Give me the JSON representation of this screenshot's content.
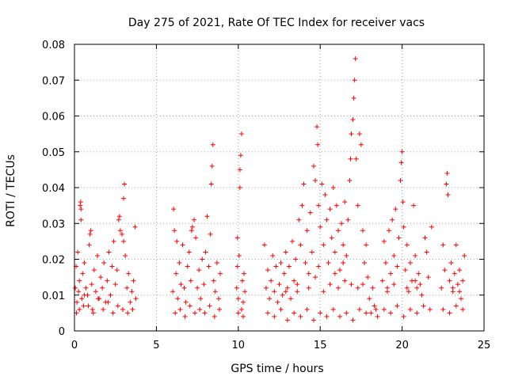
{
  "chart_data": {
    "type": "scatter",
    "title": "Day 275 of 2021, Rate Of TEC Index for receiver vacs",
    "xlabel": "GPS time / hours",
    "ylabel": "ROTI / TECUs",
    "xlim": [
      0,
      25
    ],
    "ylim": [
      0,
      0.08
    ],
    "xticks": [
      0,
      5,
      10,
      15,
      20,
      25
    ],
    "yticks": [
      0,
      0.01,
      0.02,
      0.03,
      0.04,
      0.05,
      0.06,
      0.07,
      0.08
    ],
    "xtick_labels": [
      "0",
      "5",
      "10",
      "15",
      "20",
      "25"
    ],
    "ytick_labels": [
      "0",
      "0.01",
      "0.02",
      "0.03",
      "0.04",
      "0.05",
      "0.06",
      "0.07",
      "0.08"
    ],
    "grid": true,
    "marker": "plus",
    "color": "#ff0000",
    "series": [
      {
        "points": [
          [
            0.05,
            0.012
          ],
          [
            0.1,
            0.018
          ],
          [
            0.15,
            0.008
          ],
          [
            0.2,
            0.022
          ],
          [
            0.25,
            0.011
          ],
          [
            0.3,
            0.014
          ],
          [
            0.35,
            0.035
          ],
          [
            0.38,
            0.036
          ],
          [
            0.4,
            0.034
          ],
          [
            0.45,
            0.009
          ],
          [
            0.5,
            0.016
          ],
          [
            0.55,
            0.007
          ],
          [
            0.6,
            0.019
          ],
          [
            0.7,
            0.012
          ],
          [
            0.8,
            0.01
          ],
          [
            0.9,
            0.024
          ],
          [
            1.0,
            0.028
          ],
          [
            1.05,
            0.013
          ],
          [
            1.1,
            0.006
          ],
          [
            1.2,
            0.017
          ],
          [
            1.3,
            0.011
          ],
          [
            1.4,
            0.021
          ],
          [
            1.5,
            0.009
          ],
          [
            1.6,
            0.015
          ],
          [
            1.7,
            0.012
          ],
          [
            1.8,
            0.019
          ],
          [
            1.9,
            0.008
          ],
          [
            2.0,
            0.014
          ],
          [
            2.1,
            0.022
          ],
          [
            2.2,
            0.01
          ],
          [
            2.3,
            0.018
          ],
          [
            2.4,
            0.025
          ],
          [
            2.5,
            0.013
          ],
          [
            2.6,
            0.017
          ],
          [
            2.7,
            0.031
          ],
          [
            2.8,
            0.028
          ],
          [
            2.9,
            0.027
          ],
          [
            3.0,
            0.037
          ],
          [
            3.05,
            0.041
          ],
          [
            3.1,
            0.021
          ],
          [
            3.2,
            0.012
          ],
          [
            3.3,
            0.016
          ],
          [
            3.4,
            0.008
          ],
          [
            3.5,
            0.011
          ],
          [
            3.6,
            0.014
          ],
          [
            3.7,
            0.029
          ],
          [
            3.75,
            0.009
          ],
          [
            0.12,
            0.005
          ],
          [
            0.3,
            0.006
          ],
          [
            0.6,
            0.01
          ],
          [
            0.85,
            0.007
          ],
          [
            1.15,
            0.005
          ],
          [
            1.45,
            0.009
          ],
          [
            1.75,
            0.006
          ],
          [
            2.05,
            0.008
          ],
          [
            2.35,
            0.005
          ],
          [
            2.65,
            0.007
          ],
          [
            2.95,
            0.006
          ],
          [
            3.25,
            0.005
          ],
          [
            3.55,
            0.006
          ],
          [
            0.4,
            0.031
          ],
          [
            0.95,
            0.027
          ],
          [
            2.75,
            0.032
          ],
          [
            3.0,
            0.025
          ],
          [
            6.0,
            0.011
          ],
          [
            6.05,
            0.034
          ],
          [
            6.1,
            0.028
          ],
          [
            6.2,
            0.016
          ],
          [
            6.3,
            0.009
          ],
          [
            6.4,
            0.019
          ],
          [
            6.5,
            0.013
          ],
          [
            6.6,
            0.024
          ],
          [
            6.7,
            0.012
          ],
          [
            6.8,
            0.008
          ],
          [
            6.9,
            0.018
          ],
          [
            7.0,
            0.022
          ],
          [
            7.1,
            0.014
          ],
          [
            7.2,
            0.029
          ],
          [
            7.3,
            0.031
          ],
          [
            7.4,
            0.026
          ],
          [
            7.5,
            0.012
          ],
          [
            7.6,
            0.017
          ],
          [
            7.7,
            0.009
          ],
          [
            7.8,
            0.02
          ],
          [
            7.9,
            0.013
          ],
          [
            8.0,
            0.022
          ],
          [
            8.1,
            0.032
          ],
          [
            8.2,
            0.018
          ],
          [
            8.3,
            0.027
          ],
          [
            8.35,
            0.041
          ],
          [
            8.4,
            0.046
          ],
          [
            8.45,
            0.052
          ],
          [
            8.5,
            0.014
          ],
          [
            8.6,
            0.011
          ],
          [
            8.7,
            0.019
          ],
          [
            8.8,
            0.009
          ],
          [
            8.9,
            0.016
          ],
          [
            6.15,
            0.005
          ],
          [
            6.45,
            0.006
          ],
          [
            6.75,
            0.004
          ],
          [
            7.05,
            0.007
          ],
          [
            7.35,
            0.005
          ],
          [
            7.65,
            0.006
          ],
          [
            7.95,
            0.005
          ],
          [
            8.25,
            0.007
          ],
          [
            8.55,
            0.004
          ],
          [
            8.85,
            0.006
          ],
          [
            6.25,
            0.025
          ],
          [
            7.15,
            0.028
          ],
          [
            9.9,
            0.012
          ],
          [
            9.95,
            0.018
          ],
          [
            10.0,
            0.009
          ],
          [
            10.05,
            0.021
          ],
          [
            10.1,
            0.04
          ],
          [
            10.15,
            0.049
          ],
          [
            10.2,
            0.055
          ],
          [
            10.25,
            0.014
          ],
          [
            10.3,
            0.008
          ],
          [
            10.35,
            0.016
          ],
          [
            10.4,
            0.011
          ],
          [
            10.0,
            0.005
          ],
          [
            10.2,
            0.006
          ],
          [
            10.3,
            0.004
          ],
          [
            9.95,
            0.026
          ],
          [
            10.1,
            0.045
          ],
          [
            11.6,
            0.024
          ],
          [
            11.7,
            0.012
          ],
          [
            11.8,
            0.017
          ],
          [
            11.9,
            0.009
          ],
          [
            12.0,
            0.014
          ],
          [
            12.1,
            0.021
          ],
          [
            12.2,
            0.011
          ],
          [
            12.3,
            0.018
          ],
          [
            12.4,
            0.008
          ],
          [
            12.5,
            0.013
          ],
          [
            12.6,
            0.019
          ],
          [
            12.7,
            0.01
          ],
          [
            12.8,
            0.016
          ],
          [
            12.9,
            0.022
          ],
          [
            13.0,
            0.012
          ],
          [
            13.1,
            0.018
          ],
          [
            13.2,
            0.009
          ],
          [
            13.3,
            0.025
          ],
          [
            13.4,
            0.014
          ],
          [
            13.5,
            0.02
          ],
          [
            13.6,
            0.011
          ],
          [
            13.7,
            0.031
          ],
          [
            13.8,
            0.024
          ],
          [
            13.9,
            0.035
          ],
          [
            14.0,
            0.041
          ],
          [
            14.1,
            0.019
          ],
          [
            14.2,
            0.028
          ],
          [
            14.3,
            0.016
          ],
          [
            14.4,
            0.033
          ],
          [
            14.5,
            0.022
          ],
          [
            14.6,
            0.046
          ],
          [
            14.7,
            0.042
          ],
          [
            14.8,
            0.057
          ],
          [
            14.85,
            0.052
          ],
          [
            14.9,
            0.035
          ],
          [
            15.0,
            0.029
          ],
          [
            15.1,
            0.041
          ],
          [
            15.2,
            0.024
          ],
          [
            15.3,
            0.038
          ],
          [
            15.4,
            0.031
          ],
          [
            15.5,
            0.019
          ],
          [
            15.6,
            0.034
          ],
          [
            15.7,
            0.026
          ],
          [
            15.8,
            0.04
          ],
          [
            15.9,
            0.022
          ],
          [
            16.0,
            0.035
          ],
          [
            16.1,
            0.028
          ],
          [
            16.2,
            0.017
          ],
          [
            16.3,
            0.03
          ],
          [
            16.4,
            0.024
          ],
          [
            16.5,
            0.036
          ],
          [
            16.6,
            0.021
          ],
          [
            16.7,
            0.031
          ],
          [
            16.8,
            0.042
          ],
          [
            16.85,
            0.048
          ],
          [
            16.9,
            0.055
          ],
          [
            17.0,
            0.059
          ],
          [
            17.05,
            0.065
          ],
          [
            17.1,
            0.07
          ],
          [
            17.15,
            0.076
          ],
          [
            17.2,
            0.048
          ],
          [
            17.3,
            0.035
          ],
          [
            17.4,
            0.055
          ],
          [
            17.5,
            0.052
          ],
          [
            17.6,
            0.028
          ],
          [
            17.7,
            0.019
          ],
          [
            17.8,
            0.024
          ],
          [
            17.9,
            0.015
          ],
          [
            11.8,
            0.005
          ],
          [
            12.2,
            0.004
          ],
          [
            12.6,
            0.006
          ],
          [
            13.0,
            0.003
          ],
          [
            13.4,
            0.005
          ],
          [
            13.8,
            0.004
          ],
          [
            14.2,
            0.006
          ],
          [
            14.6,
            0.003
          ],
          [
            15.0,
            0.005
          ],
          [
            15.4,
            0.004
          ],
          [
            15.8,
            0.006
          ],
          [
            16.2,
            0.004
          ],
          [
            16.6,
            0.005
          ],
          [
            17.0,
            0.003
          ],
          [
            17.4,
            0.006
          ],
          [
            17.8,
            0.005
          ],
          [
            14.3,
            0.012
          ],
          [
            14.7,
            0.015
          ],
          [
            15.2,
            0.011
          ],
          [
            15.6,
            0.013
          ],
          [
            16.1,
            0.012
          ],
          [
            16.5,
            0.014
          ],
          [
            16.9,
            0.013
          ],
          [
            17.3,
            0.012
          ],
          [
            13.6,
            0.013
          ],
          [
            12.9,
            0.011
          ],
          [
            14.9,
            0.018
          ],
          [
            15.9,
            0.016
          ],
          [
            16.4,
            0.019
          ],
          [
            17.6,
            0.013
          ],
          [
            18.0,
            0.009
          ],
          [
            18.1,
            0.005
          ],
          [
            18.2,
            0.012
          ],
          [
            18.3,
            0.007
          ],
          [
            18.4,
            0.006
          ],
          [
            18.5,
            0.004
          ],
          [
            18.8,
            0.014
          ],
          [
            18.9,
            0.025
          ],
          [
            19.0,
            0.019
          ],
          [
            19.1,
            0.012
          ],
          [
            19.2,
            0.028
          ],
          [
            19.3,
            0.016
          ],
          [
            19.4,
            0.031
          ],
          [
            19.5,
            0.021
          ],
          [
            19.6,
            0.034
          ],
          [
            19.7,
            0.018
          ],
          [
            19.8,
            0.026
          ],
          [
            19.9,
            0.042
          ],
          [
            19.95,
            0.047
          ],
          [
            20.0,
            0.05
          ],
          [
            20.05,
            0.036
          ],
          [
            20.1,
            0.029
          ],
          [
            20.2,
            0.017
          ],
          [
            20.3,
            0.024
          ],
          [
            20.4,
            0.011
          ],
          [
            20.5,
            0.019
          ],
          [
            20.6,
            0.014
          ],
          [
            20.7,
            0.035
          ],
          [
            20.8,
            0.021
          ],
          [
            20.9,
            0.012
          ],
          [
            21.0,
            0.016
          ],
          [
            21.2,
            0.01
          ],
          [
            21.4,
            0.026
          ],
          [
            21.5,
            0.022
          ],
          [
            21.6,
            0.015
          ],
          [
            21.8,
            0.029
          ],
          [
            18.9,
            0.006
          ],
          [
            19.3,
            0.005
          ],
          [
            19.7,
            0.007
          ],
          [
            20.1,
            0.004
          ],
          [
            20.5,
            0.006
          ],
          [
            20.9,
            0.005
          ],
          [
            21.3,
            0.007
          ],
          [
            21.7,
            0.006
          ],
          [
            19.5,
            0.013
          ],
          [
            20.3,
            0.012
          ],
          [
            21.1,
            0.013
          ],
          [
            19.1,
            0.011
          ],
          [
            20.8,
            0.014
          ],
          [
            22.4,
            0.012
          ],
          [
            22.5,
            0.024
          ],
          [
            22.6,
            0.017
          ],
          [
            22.7,
            0.041
          ],
          [
            22.75,
            0.044
          ],
          [
            22.8,
            0.038
          ],
          [
            22.9,
            0.014
          ],
          [
            23.0,
            0.019
          ],
          [
            23.1,
            0.011
          ],
          [
            23.2,
            0.016
          ],
          [
            23.3,
            0.024
          ],
          [
            23.4,
            0.013
          ],
          [
            23.5,
            0.017
          ],
          [
            23.6,
            0.009
          ],
          [
            23.7,
            0.014
          ],
          [
            23.8,
            0.021
          ],
          [
            22.5,
            0.006
          ],
          [
            22.9,
            0.005
          ],
          [
            23.3,
            0.007
          ],
          [
            23.7,
            0.006
          ],
          [
            23.1,
            0.012
          ],
          [
            23.5,
            0.011
          ]
        ]
      }
    ]
  }
}
